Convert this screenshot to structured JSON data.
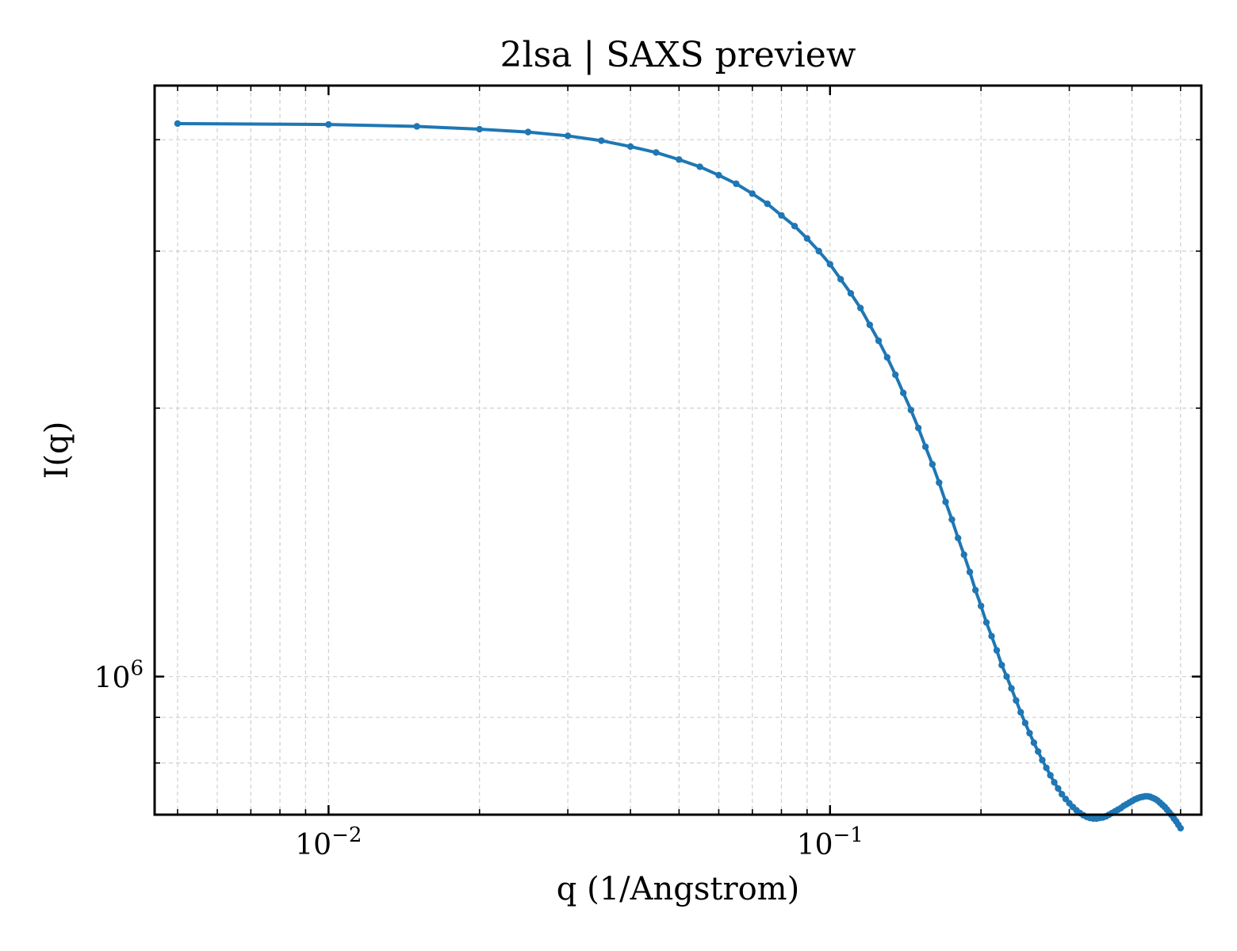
{
  "chart_data": {
    "type": "line",
    "title": "2lsa | SAXS preview",
    "xlabel": "q (1/Angstrom)",
    "ylabel": "I(q)",
    "xscale": "log",
    "yscale": "log",
    "xlim": [
      0.0045,
      0.55
    ],
    "ylim": [
      700000,
      4600000
    ],
    "grid": true,
    "legend": "none",
    "x_tick_labels": [
      {
        "value": 0.01,
        "base": "10",
        "exp": "−2"
      },
      {
        "value": 0.1,
        "base": "10",
        "exp": "−1"
      }
    ],
    "y_tick_labels": [
      {
        "value": 1000000,
        "base": "10",
        "exp": "6"
      }
    ],
    "series": [
      {
        "color": "#1f77b4",
        "marker": "circle",
        "x": [
          0.005,
          0.01,
          0.015,
          0.02,
          0.025,
          0.03,
          0.035,
          0.04,
          0.045,
          0.05,
          0.055,
          0.06,
          0.065,
          0.07,
          0.075,
          0.08,
          0.085,
          0.09,
          0.095,
          0.1,
          0.105,
          0.11,
          0.115,
          0.12,
          0.125,
          0.13,
          0.135,
          0.14,
          0.145,
          0.15,
          0.155,
          0.16,
          0.165,
          0.17,
          0.175,
          0.18,
          0.185,
          0.19,
          0.195,
          0.2,
          0.205,
          0.21,
          0.215,
          0.22,
          0.225,
          0.23,
          0.235,
          0.24,
          0.245,
          0.25,
          0.255,
          0.26,
          0.265,
          0.27,
          0.275,
          0.28,
          0.285,
          0.29,
          0.295,
          0.3,
          0.305,
          0.31,
          0.315,
          0.32,
          0.325,
          0.33,
          0.335,
          0.34,
          0.345,
          0.35,
          0.355,
          0.36,
          0.365,
          0.37,
          0.375,
          0.38,
          0.385,
          0.39,
          0.395,
          0.4,
          0.405,
          0.41,
          0.415,
          0.42,
          0.425,
          0.43,
          0.435,
          0.44,
          0.445,
          0.45,
          0.455,
          0.46,
          0.465,
          0.47,
          0.475,
          0.48,
          0.485,
          0.49,
          0.495,
          0.5
        ],
        "y": [
          4170000,
          4160000,
          4140000,
          4110000,
          4080000,
          4040000,
          3990000,
          3930000,
          3870000,
          3800000,
          3730000,
          3650000,
          3570000,
          3480000,
          3390000,
          3290000,
          3200000,
          3100000,
          3000000,
          2900000,
          2790000,
          2690000,
          2590000,
          2480000,
          2380000,
          2280000,
          2180000,
          2080000,
          1990000,
          1900000,
          1810000,
          1730000,
          1650000,
          1570000,
          1500000,
          1430000,
          1370000,
          1310000,
          1250000,
          1200000,
          1150000,
          1110000,
          1070000,
          1030000,
          1000000,
          970000,
          940000,
          912000,
          887000,
          864000,
          843000,
          824000,
          806000,
          790000,
          775000,
          761000,
          749000,
          738000,
          729000,
          721000,
          714000,
          708000,
          703000,
          699000,
          696000,
          694000,
          693000,
          693000,
          694000,
          695000,
          697000,
          700000,
          703000,
          706000,
          709000,
          712000,
          716000,
          719000,
          722000,
          725000,
          728000,
          730000,
          732000,
          733000,
          734000,
          734000,
          733000,
          731000,
          729000,
          726000,
          722000,
          718000,
          714000,
          709000,
          704000,
          699000,
          693000,
          688000,
          682000,
          676000
        ]
      }
    ]
  }
}
